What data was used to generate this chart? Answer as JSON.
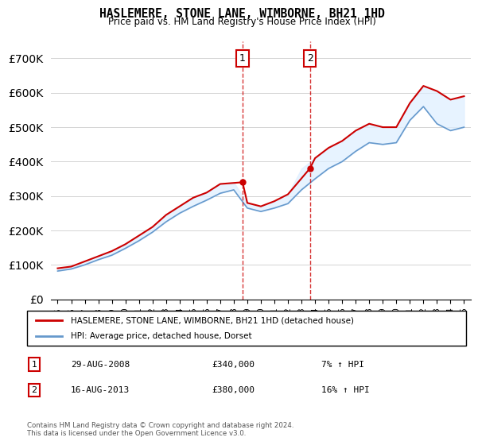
{
  "title": "HASLEMERE, STONE LANE, WIMBORNE, BH21 1HD",
  "subtitle": "Price paid vs. HM Land Registry's House Price Index (HPI)",
  "legend_line1": "HASLEMERE, STONE LANE, WIMBORNE, BH21 1HD (detached house)",
  "legend_line2": "HPI: Average price, detached house, Dorset",
  "annotation1_label": "1",
  "annotation1_date": "29-AUG-2008",
  "annotation1_price": "£340,000",
  "annotation1_hpi": "7% ↑ HPI",
  "annotation1_year": 2008.65,
  "annotation1_value": 340000,
  "annotation2_label": "2",
  "annotation2_date": "16-AUG-2013",
  "annotation2_price": "£380,000",
  "annotation2_hpi": "16% ↑ HPI",
  "annotation2_year": 2013.62,
  "annotation2_value": 380000,
  "footer": "Contains HM Land Registry data © Crown copyright and database right 2024.\nThis data is licensed under the Open Government Licence v3.0.",
  "red_line_color": "#cc0000",
  "blue_line_color": "#6699cc",
  "shade_color": "#ddeeff",
  "ylim": [
    0,
    750000
  ],
  "yticks": [
    0,
    100000,
    200000,
    300000,
    400000,
    500000,
    600000,
    700000
  ],
  "red_x": [
    1995,
    1996,
    1997,
    1998,
    1999,
    2000,
    2001,
    2002,
    2003,
    2004,
    2005,
    2006,
    2007,
    2008.65,
    2009,
    2010,
    2011,
    2012,
    2013.62,
    2014,
    2015,
    2016,
    2017,
    2018,
    2019,
    2020,
    2021,
    2022,
    2023,
    2024,
    2025
  ],
  "red_y": [
    90000,
    95000,
    110000,
    125000,
    140000,
    160000,
    185000,
    210000,
    245000,
    270000,
    295000,
    310000,
    335000,
    340000,
    280000,
    270000,
    285000,
    305000,
    380000,
    410000,
    440000,
    460000,
    490000,
    510000,
    500000,
    500000,
    570000,
    620000,
    605000,
    580000,
    590000
  ],
  "blue_x": [
    1995,
    1996,
    1997,
    1998,
    1999,
    2000,
    2001,
    2002,
    2003,
    2004,
    2005,
    2006,
    2007,
    2008,
    2009,
    2010,
    2011,
    2012,
    2013,
    2014,
    2015,
    2016,
    2017,
    2018,
    2019,
    2020,
    2021,
    2022,
    2023,
    2024,
    2025
  ],
  "blue_y": [
    82000,
    88000,
    100000,
    115000,
    128000,
    148000,
    170000,
    195000,
    225000,
    250000,
    270000,
    288000,
    308000,
    318000,
    265000,
    255000,
    265000,
    278000,
    318000,
    350000,
    380000,
    400000,
    430000,
    455000,
    450000,
    455000,
    520000,
    560000,
    510000,
    490000,
    500000
  ]
}
